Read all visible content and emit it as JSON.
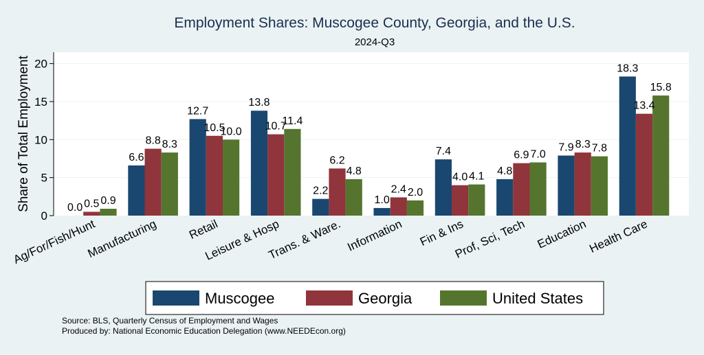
{
  "chart_data": {
    "type": "bar",
    "title": "Employment Shares: Muscogee County, Georgia, and the U.S.",
    "subtitle": "2024-Q3",
    "xlabel": "",
    "ylabel": "Share of Total Employment",
    "ylim": [
      0,
      21.5
    ],
    "yticks": [
      0,
      5,
      10,
      15,
      20
    ],
    "grid": true,
    "legend_position": "bottom",
    "categories": [
      "Ag/For/Fish/Hunt",
      "Manufacturing",
      "Retail",
      "Leisure & Hosp",
      "Trans. & Ware.",
      "Information",
      "Fin & Ins",
      "Prof, Sci, Tech",
      "Education",
      "Health Care"
    ],
    "series": [
      {
        "name": "Muscogee",
        "color": "#1a476f",
        "values": [
          0.0,
          6.6,
          12.7,
          13.8,
          2.2,
          1.0,
          7.4,
          4.8,
          7.9,
          18.3
        ]
      },
      {
        "name": "Georgia",
        "color": "#90353b",
        "values": [
          0.5,
          8.8,
          10.5,
          10.7,
          6.2,
          2.4,
          4.0,
          6.9,
          8.3,
          13.4
        ]
      },
      {
        "name": "United States",
        "color": "#55752f",
        "values": [
          0.9,
          8.3,
          10.0,
          11.4,
          4.8,
          2.0,
          4.1,
          7.0,
          7.8,
          15.8
        ]
      }
    ],
    "notes": [
      "Source: BLS, Quarterly Census of Employment and Wages",
      "Produced by: National Economic Education Delegation (www.NEEDEcon.org)"
    ]
  }
}
